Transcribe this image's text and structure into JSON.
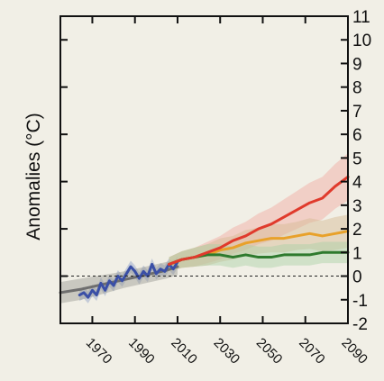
{
  "chart_data": {
    "type": "line",
    "title": "",
    "xlabel": "",
    "ylabel": "Anomalies (°C)",
    "xlim": [
      1955,
      2090
    ],
    "ylim": [
      -2,
      11
    ],
    "x_ticks": [
      1970,
      1990,
      2010,
      2030,
      2050,
      2070,
      2090
    ],
    "x_tick_labels": [
      "1970",
      "1990",
      "2010",
      "2030",
      "2050",
      "2070",
      "2090"
    ],
    "y_ticks": [
      -2,
      -1,
      0,
      1,
      2,
      3,
      4,
      5,
      6,
      7,
      8,
      9,
      10,
      11
    ],
    "y_tick_labels": [
      "-2",
      "-1",
      "0",
      "1",
      "2",
      "3",
      "4",
      "5",
      "6",
      "7",
      "8",
      "9",
      "10",
      "11"
    ],
    "zero_reference_line": {
      "y": 0,
      "style": "dotted"
    },
    "grid": false,
    "series": [
      {
        "color": "#3a4fa6",
        "x": [
          1964,
          1966,
          1968,
          1970,
          1972,
          1974,
          1976,
          1978,
          1980,
          1982,
          1984,
          1986,
          1988,
          1990,
          1992,
          1994,
          1996,
          1998,
          2000,
          2002,
          2004,
          2006,
          2008,
          2010
        ],
        "y": [
          -0.8,
          -0.7,
          -0.9,
          -0.6,
          -0.8,
          -0.3,
          -0.6,
          -0.2,
          -0.4,
          0.0,
          -0.2,
          0.1,
          0.4,
          0.2,
          -0.1,
          0.2,
          0.0,
          0.5,
          0.1,
          0.3,
          0.2,
          0.5,
          0.3,
          0.6
        ],
        "band": {
          "color": "#8fa0c8",
          "halfwidth": [
            0.25,
            0.25,
            0.25,
            0.25,
            0.25,
            0.25,
            0.25,
            0.25,
            0.25,
            0.25,
            0.25,
            0.25,
            0.25,
            0.25,
            0.25,
            0.25,
            0.25,
            0.25,
            0.25,
            0.25,
            0.25,
            0.25,
            0.25,
            0.25
          ]
        }
      },
      {
        "color": "#6e6e6e",
        "x": [
          1955,
          1965,
          1975,
          1985,
          1995,
          2005,
          2010
        ],
        "y": [
          -0.7,
          -0.55,
          -0.35,
          -0.15,
          0.05,
          0.25,
          0.4
        ],
        "band": {
          "color": "#9a9a92",
          "halfwidth": [
            0.45,
            0.45,
            0.4,
            0.35,
            0.35,
            0.35,
            0.35
          ]
        }
      },
      {
        "color": "#e03a2c",
        "x": [
          2006,
          2012,
          2018,
          2024,
          2030,
          2036,
          2042,
          2048,
          2054,
          2060,
          2066,
          2072,
          2078,
          2084,
          2090
        ],
        "y": [
          0.5,
          0.7,
          0.8,
          1.0,
          1.2,
          1.5,
          1.7,
          2.0,
          2.2,
          2.5,
          2.8,
          3.1,
          3.3,
          3.8,
          4.2
        ],
        "band": {
          "color": "#f2a8a0",
          "halfwidth": [
            0.3,
            0.35,
            0.4,
            0.45,
            0.5,
            0.55,
            0.6,
            0.65,
            0.7,
            0.75,
            0.8,
            0.85,
            0.9,
            0.95,
            1.0
          ]
        }
      },
      {
        "color": "#e8a12a",
        "x": [
          2006,
          2012,
          2018,
          2024,
          2030,
          2036,
          2042,
          2048,
          2054,
          2060,
          2066,
          2072,
          2078,
          2084,
          2090
        ],
        "y": [
          0.5,
          0.7,
          0.8,
          0.9,
          1.1,
          1.2,
          1.4,
          1.5,
          1.6,
          1.6,
          1.7,
          1.8,
          1.7,
          1.8,
          1.9
        ],
        "band": {
          "color": "#d4b890",
          "halfwidth": [
            0.3,
            0.35,
            0.4,
            0.45,
            0.5,
            0.5,
            0.55,
            0.55,
            0.6,
            0.6,
            0.6,
            0.65,
            0.65,
            0.7,
            0.7
          ]
        }
      },
      {
        "color": "#2e7a2e",
        "x": [
          2006,
          2012,
          2018,
          2024,
          2030,
          2036,
          2042,
          2048,
          2054,
          2060,
          2066,
          2072,
          2078,
          2084,
          2090
        ],
        "y": [
          0.5,
          0.7,
          0.8,
          0.9,
          0.9,
          0.8,
          0.9,
          0.8,
          0.8,
          0.9,
          0.9,
          0.9,
          1.0,
          1.0,
          1.0
        ],
        "band": {
          "color": "#a8d0a4",
          "halfwidth": [
            0.3,
            0.35,
            0.4,
            0.45,
            0.45,
            0.45,
            0.45,
            0.45,
            0.45,
            0.45,
            0.45,
            0.45,
            0.45,
            0.45,
            0.45
          ]
        }
      }
    ]
  }
}
